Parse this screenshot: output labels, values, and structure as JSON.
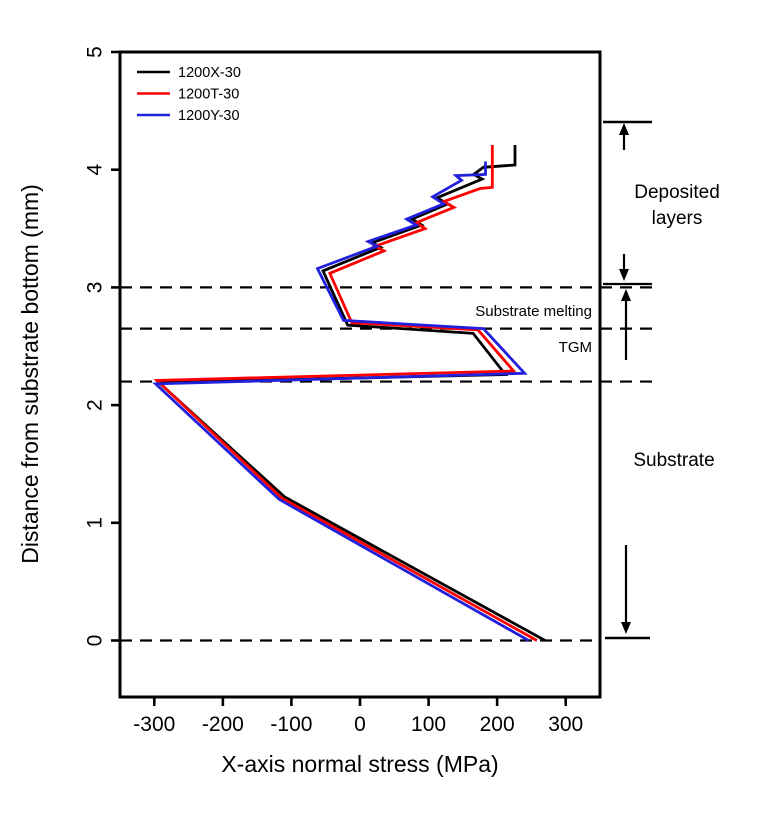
{
  "figure": {
    "background": "#ffffff",
    "title": ""
  },
  "chart_data": {
    "type": "line",
    "title": "",
    "xlabel": "X-axis normal stress (MPa)",
    "ylabel": "Distance from substrate bottom (mm)",
    "xlim": [
      -350,
      350
    ],
    "ylim": [
      -0.48,
      5
    ],
    "xticks": [
      -300,
      -200,
      -100,
      0,
      100,
      200,
      300
    ],
    "yticks": [
      0,
      1,
      2,
      3,
      4,
      5
    ],
    "grid": false,
    "legend_position": "top-left",
    "series": [
      {
        "name": "1200X-30",
        "color": "#000000",
        "points": [
          [
            270,
            0
          ],
          [
            -110,
            1.22
          ],
          [
            -293,
            2.19
          ],
          [
            212,
            2.26
          ],
          [
            165,
            2.61
          ],
          [
            -18,
            2.68
          ],
          [
            -54,
            3.14
          ],
          [
            30,
            3.34
          ],
          [
            18,
            3.38
          ],
          [
            90,
            3.53
          ],
          [
            76,
            3.58
          ],
          [
            128,
            3.71
          ],
          [
            112,
            3.76
          ],
          [
            178,
            3.92
          ],
          [
            166,
            3.96
          ],
          [
            180,
            4.02
          ],
          [
            226,
            4.04
          ],
          [
            226,
            4.21
          ]
        ]
      },
      {
        "name": "1200T-30",
        "color": "#ff0000",
        "points": [
          [
            258,
            0
          ],
          [
            -114,
            1.21
          ],
          [
            -296,
            2.21
          ],
          [
            224,
            2.29
          ],
          [
            172,
            2.64
          ],
          [
            -12,
            2.7
          ],
          [
            -44,
            3.12
          ],
          [
            35,
            3.31
          ],
          [
            22,
            3.35
          ],
          [
            95,
            3.5
          ],
          [
            82,
            3.55
          ],
          [
            137,
            3.68
          ],
          [
            122,
            3.73
          ],
          [
            175,
            3.84
          ],
          [
            193,
            3.85
          ],
          [
            193,
            4.21
          ]
        ]
      },
      {
        "name": "1200Y-30",
        "color": "#2020dd",
        "points": [
          [
            246,
            0
          ],
          [
            -118,
            1.2
          ],
          [
            -298,
            2.18
          ],
          [
            240,
            2.27
          ],
          [
            180,
            2.65
          ],
          [
            -24,
            2.72
          ],
          [
            -62,
            3.16
          ],
          [
            25,
            3.35
          ],
          [
            12,
            3.39
          ],
          [
            82,
            3.53
          ],
          [
            68,
            3.58
          ],
          [
            122,
            3.71
          ],
          [
            106,
            3.77
          ],
          [
            148,
            3.91
          ],
          [
            140,
            3.95
          ],
          [
            183,
            3.96
          ],
          [
            183,
            4.07
          ]
        ]
      }
    ],
    "dashed_lines_y": [
      3.0,
      2.65,
      2.2,
      0
    ],
    "inside_labels": [
      {
        "text": "Substrate melting"
      },
      {
        "text": "TGM"
      }
    ]
  },
  "right_annotations": {
    "deposited_layers": [
      "Deposited",
      "layers"
    ],
    "substrate": "Substrate"
  }
}
